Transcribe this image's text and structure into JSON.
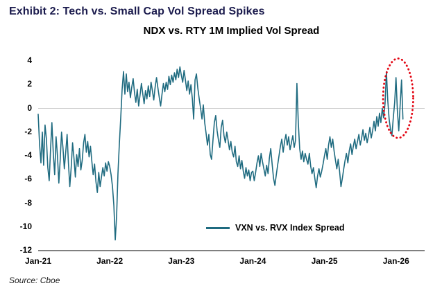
{
  "header": {
    "title": "Exhibit 2: Tech vs. Small Cap Vol Spread Spikes"
  },
  "colors": {
    "title": "#1b1b4d",
    "series_line": "#1f6b80",
    "zero_line": "#c9c9c9",
    "axis": "#000000",
    "annotation_red": "#e30613"
  },
  "chart_data": {
    "type": "line",
    "title": "NDX vs. RTY 1M Implied Vol Spread",
    "xlabel": "",
    "ylabel": "",
    "ylim": [
      -12,
      4
    ],
    "y_ticks": [
      4,
      2,
      0,
      -2,
      -4,
      -6,
      -8,
      -10,
      -12
    ],
    "x_tick_labels": [
      "Jan-21",
      "Jan-22",
      "Jan-23",
      "Jan-24",
      "Jan-25",
      "Jan-26"
    ],
    "x_range_years": 5.4,
    "points_per_year": 52,
    "grid": "zero-line-only",
    "legend_position": "bottom-center-inside",
    "series": [
      {
        "name": "VXN vs. RVX Index Spread",
        "color": "#1f6b80",
        "values": [
          -0.5,
          -3.0,
          -4.6,
          -2.0,
          -4.8,
          -1.4,
          -2.6,
          -5.0,
          -6.1,
          -3.4,
          -1.2,
          -3.8,
          -5.6,
          -2.4,
          -4.0,
          -6.3,
          -4.4,
          -2.0,
          -3.3,
          -5.1,
          -3.7,
          -2.2,
          -4.6,
          -6.6,
          -5.0,
          -2.9,
          -4.2,
          -5.8,
          -3.9,
          -4.9,
          -3.4,
          -5.2,
          -4.4,
          -2.9,
          -2.2,
          -3.7,
          -2.8,
          -4.1,
          -3.2,
          -4.5,
          -5.6,
          -4.7,
          -6.2,
          -7.1,
          -5.4,
          -6.6,
          -5.8,
          -5.0,
          -5.7,
          -4.6,
          -5.3,
          -4.5,
          -4.9,
          -5.6,
          -6.6,
          -8.2,
          -11.1,
          -9.0,
          -5.5,
          -3.0,
          -0.8,
          1.6,
          3.1,
          1.2,
          2.9,
          1.4,
          2.2,
          0.9,
          1.8,
          2.5,
          1.3,
          0.5,
          1.6,
          0.2,
          1.1,
          2.1,
          1.2,
          0.4,
          1.5,
          0.8,
          1.9,
          1.0,
          2.2,
          1.5,
          0.7,
          1.8,
          2.6,
          1.7,
          0.9,
          0.2,
          1.2,
          2.1,
          1.4,
          2.2,
          1.6,
          2.7,
          2.0,
          2.8,
          2.2,
          3.0,
          2.4,
          3.3,
          2.6,
          3.5,
          2.8,
          2.2,
          3.2,
          2.4,
          1.5,
          2.3,
          1.2,
          2.0,
          0.8,
          -0.9,
          2.4,
          2.9,
          1.7,
          0.8,
          0.0,
          -0.9,
          0.3,
          -1.2,
          -2.1,
          -3.1,
          -2.2,
          -3.9,
          -4.3,
          -2.7,
          -1.2,
          -0.6,
          -1.9,
          -2.7,
          -3.3,
          -1.6,
          -1.0,
          -2.3,
          -2.9,
          -2.0,
          -2.7,
          -3.5,
          -2.8,
          -3.7,
          -4.1,
          -3.2,
          -4.5,
          -4.9,
          -4.0,
          -5.1,
          -4.4,
          -5.3,
          -5.9,
          -5.0,
          -5.7,
          -5.2,
          -6.1,
          -5.4,
          -5.3,
          -6.1,
          -5.4,
          -4.6,
          -4.0,
          -4.9,
          -3.8,
          -4.5,
          -5.1,
          -5.7,
          -4.8,
          -5.5,
          -4.2,
          -3.4,
          -4.7,
          -5.9,
          -6.5,
          -5.6,
          -4.8,
          -4.0,
          -3.2,
          -2.6,
          -3.7,
          -2.8,
          -2.2,
          -3.1,
          -2.4,
          -3.5,
          -2.9,
          -2.3,
          -3.3,
          -2.7,
          2.1,
          -1.2,
          -3.4,
          -4.3,
          -3.6,
          -4.5,
          -3.8,
          -4.3,
          -4.7,
          -3.8,
          -4.9,
          -5.5,
          -5.0,
          -5.9,
          -6.7,
          -5.7,
          -5.1,
          -5.8,
          -5.3,
          -4.7,
          -4.0,
          -3.4,
          -4.3,
          -3.1,
          -2.4,
          -3.3,
          -2.6,
          -3.6,
          -4.4,
          -5.1,
          -4.3,
          -5.3,
          -6.6,
          -5.9,
          -5.1,
          -4.4,
          -3.8,
          -4.6,
          -3.6,
          -3.0,
          -3.9,
          -3.2,
          -2.6,
          -3.4,
          -2.8,
          -2.2,
          -3.1,
          -2.5,
          -1.8,
          -2.7,
          -2.1,
          -2.9,
          -2.3,
          -1.6,
          -2.5,
          -1.9,
          -1.1,
          -1.9,
          -0.7,
          -1.5,
          -0.4,
          -1.2,
          0.0,
          -0.8,
          0.4,
          3.1,
          0.7,
          -0.9,
          -1.8,
          -2.3,
          -0.8,
          0.5,
          2.6,
          -0.2,
          -1.9,
          0.3,
          2.4,
          -0.9
        ]
      }
    ],
    "annotation": {
      "type": "dotted-ellipse",
      "color": "#e30613",
      "x_year": 5.03,
      "y_value": 0.85,
      "rx_year": 0.21,
      "ry_value": 3.35
    }
  },
  "footer": {
    "source": "Source: Cboe"
  }
}
